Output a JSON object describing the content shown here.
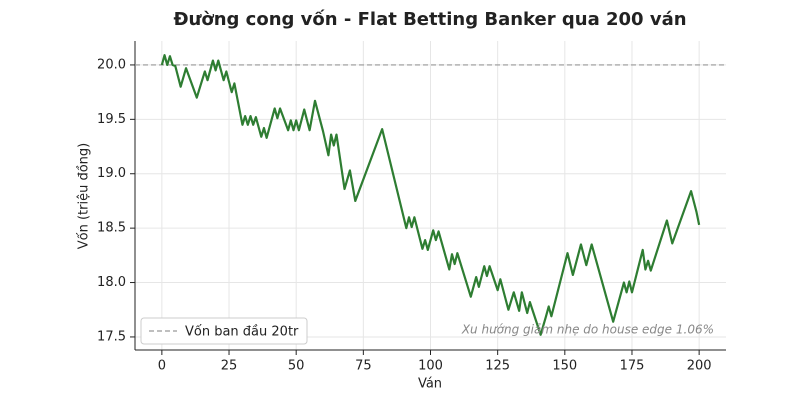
{
  "chart_data": {
    "type": "line",
    "title": "Đường cong vốn - Flat Betting Banker qua 200 ván",
    "xlabel": "Ván",
    "ylabel": "Vốn (triệu đồng)",
    "annotation": "Xu hướng giảm nhẹ do house edge 1.06%",
    "xlim": [
      -10,
      210
    ],
    "ylim": [
      17.38,
      20.22
    ],
    "xticks": [
      0,
      25,
      50,
      75,
      100,
      125,
      150,
      175,
      200
    ],
    "yticks": [
      {
        "value": 17.5,
        "label": "17.5"
      },
      {
        "value": 18,
        "label": "18.0"
      },
      {
        "value": 18.5,
        "label": "18.5"
      },
      {
        "value": 19,
        "label": "19.0"
      },
      {
        "value": 19.5,
        "label": "19.5"
      },
      {
        "value": 20,
        "label": "20.0"
      }
    ],
    "grid": true,
    "legend": "lower left",
    "reference_line": {
      "name": "Vốn ban đầu 20tr",
      "value": 20,
      "color": "#999999"
    },
    "series": [
      {
        "color": "#2e7d32",
        "x": [
          0,
          1,
          2,
          3,
          4,
          5,
          7,
          9,
          13,
          16,
          17,
          19,
          20,
          21,
          23,
          24,
          26,
          27,
          30,
          31,
          32,
          33,
          34,
          35,
          37,
          38,
          39,
          42,
          43,
          44,
          47,
          48,
          49,
          50,
          51,
          53,
          55,
          57,
          60,
          62,
          63,
          64,
          65,
          68,
          70,
          72,
          82,
          91,
          92,
          93,
          94,
          97,
          98,
          99,
          101,
          102,
          103,
          107,
          108,
          109,
          110,
          115,
          117,
          118,
          120,
          121,
          122,
          125,
          126,
          129,
          131,
          133,
          134,
          136,
          137,
          141,
          143,
          144,
          145,
          151,
          153,
          156,
          158,
          160,
          168,
          172,
          173,
          174,
          175,
          179,
          180,
          181,
          182,
          188,
          190,
          197,
          199,
          200
        ],
        "values": [
          20.0,
          20.09,
          20.0,
          20.08,
          20.0,
          19.99,
          19.8,
          19.97,
          19.7,
          19.94,
          19.86,
          20.04,
          19.95,
          20.04,
          19.86,
          19.94,
          19.75,
          19.83,
          19.45,
          19.53,
          19.45,
          19.53,
          19.45,
          19.52,
          19.34,
          19.42,
          19.33,
          19.6,
          19.51,
          19.6,
          19.4,
          19.49,
          19.4,
          19.49,
          19.4,
          19.59,
          19.4,
          19.67,
          19.39,
          19.17,
          19.36,
          19.26,
          19.36,
          18.86,
          19.03,
          18.75,
          19.41,
          18.5,
          18.6,
          18.51,
          18.6,
          18.31,
          18.39,
          18.3,
          18.48,
          18.39,
          18.47,
          18.12,
          18.26,
          18.17,
          18.27,
          17.87,
          18.05,
          17.96,
          18.15,
          18.06,
          18.15,
          17.93,
          18.03,
          17.75,
          17.91,
          17.74,
          17.91,
          17.72,
          17.82,
          17.52,
          17.69,
          17.78,
          17.69,
          18.27,
          18.07,
          18.35,
          18.16,
          18.35,
          17.64,
          18.0,
          17.91,
          18.01,
          17.91,
          18.3,
          18.12,
          18.2,
          18.11,
          18.57,
          18.36,
          18.84,
          18.65,
          18.53
        ]
      }
    ]
  }
}
